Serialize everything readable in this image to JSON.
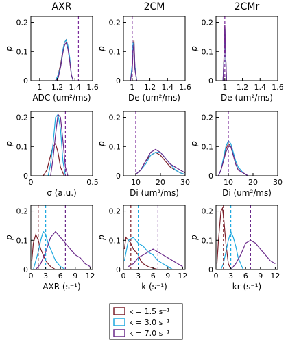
{
  "colors": {
    "k1": "#7b1f2a",
    "k2": "#1fa9e0",
    "k3": "#6a2a8a",
    "ref": "#7a2a9a"
  },
  "legend": [
    {
      "id": "k1",
      "label": "k = 1.5 s⁻¹"
    },
    {
      "id": "k2",
      "label": "k = 3.0 s⁻¹"
    },
    {
      "id": "k3",
      "label": "k = 7.0 s⁻¹"
    }
  ],
  "chart_data": [
    {
      "type": "line",
      "title": "AXR",
      "ylabel": "p",
      "xlabel": "ADC (um²/ms)",
      "xlim": [
        0.9,
        1.6
      ],
      "ylim": [
        0,
        0.22
      ],
      "xticks": [
        1.0,
        1.2,
        1.4,
        1.6
      ],
      "yticks": [
        0,
        0.1,
        0.2
      ],
      "vlines": [
        {
          "x": 1.44,
          "color_id": "ref"
        }
      ],
      "series": [
        {
          "id": "k1",
          "x": [
            1.18,
            1.21,
            1.24,
            1.26,
            1.28,
            1.3,
            1.32,
            1.34,
            1.36,
            1.38
          ],
          "y": [
            0.0,
            0.02,
            0.06,
            0.1,
            0.13,
            0.14,
            0.12,
            0.07,
            0.02,
            0.0
          ]
        },
        {
          "id": "k2",
          "x": [
            1.18,
            1.21,
            1.24,
            1.26,
            1.28,
            1.3,
            1.32,
            1.34,
            1.36,
            1.38
          ],
          "y": [
            0.0,
            0.02,
            0.05,
            0.1,
            0.13,
            0.14,
            0.12,
            0.08,
            0.02,
            0.0
          ]
        },
        {
          "id": "k3",
          "x": [
            1.18,
            1.21,
            1.24,
            1.26,
            1.28,
            1.3,
            1.32,
            1.34,
            1.36,
            1.38
          ],
          "y": [
            0.0,
            0.01,
            0.05,
            0.09,
            0.12,
            0.13,
            0.11,
            0.07,
            0.02,
            0.0
          ]
        }
      ]
    },
    {
      "type": "line",
      "title": "2CM",
      "ylabel": "p",
      "xlabel": "De (um²/ms)",
      "xlim": [
        0.9,
        1.6
      ],
      "ylim": [
        0,
        0.22
      ],
      "xticks": [
        1.0,
        1.2,
        1.4,
        1.6
      ],
      "yticks": [
        0,
        0.1,
        0.2
      ],
      "vlines": [
        {
          "x": 1.0,
          "color_id": "ref"
        }
      ],
      "series": [
        {
          "id": "k1",
          "x": [
            0.98,
            1.0,
            1.01,
            1.02,
            1.03,
            1.05
          ],
          "y": [
            0.0,
            0.05,
            0.12,
            0.14,
            0.05,
            0.0
          ]
        },
        {
          "id": "k2",
          "x": [
            0.98,
            1.0,
            1.01,
            1.02,
            1.03,
            1.05
          ],
          "y": [
            0.0,
            0.06,
            0.13,
            0.12,
            0.05,
            0.0
          ]
        },
        {
          "id": "k3",
          "x": [
            0.98,
            1.0,
            1.01,
            1.02,
            1.03,
            1.05
          ],
          "y": [
            0.0,
            0.04,
            0.1,
            0.13,
            0.04,
            0.0
          ]
        }
      ]
    },
    {
      "type": "line",
      "title": "2CMr",
      "ylabel": "p",
      "xlabel": "De (um²/ms)",
      "xlim": [
        0.9,
        1.6
      ],
      "ylim": [
        0,
        0.22
      ],
      "xticks": [
        1.0,
        1.2,
        1.4,
        1.6
      ],
      "yticks": [
        0,
        0.1,
        0.2
      ],
      "vlines": [
        {
          "x": 1.0,
          "color_id": "ref"
        }
      ],
      "series": [
        {
          "id": "k1",
          "x": [
            0.98,
            0.99,
            1.0,
            1.01,
            1.02
          ],
          "y": [
            0.0,
            0.08,
            0.19,
            0.09,
            0.0
          ]
        },
        {
          "id": "k2",
          "x": [
            0.98,
            0.99,
            1.0,
            1.01,
            1.02
          ],
          "y": [
            0.0,
            0.07,
            0.18,
            0.08,
            0.0
          ]
        },
        {
          "id": "k3",
          "x": [
            0.98,
            0.99,
            1.0,
            1.01,
            1.02
          ],
          "y": [
            0.0,
            0.07,
            0.19,
            0.09,
            0.0
          ]
        }
      ]
    },
    {
      "type": "line",
      "title": "",
      "ylabel": "p",
      "xlabel": "σ (a.u.)",
      "xlim": [
        0,
        0.5
      ],
      "ylim": [
        0,
        0.22
      ],
      "xticks": [
        0,
        0.5
      ],
      "yticks": [
        0,
        0.1,
        0.2
      ],
      "vlines": [
        {
          "x": 0.28,
          "color_id": "ref"
        }
      ],
      "series": [
        {
          "id": "k1",
          "x": [
            0.1,
            0.13,
            0.16,
            0.18,
            0.2,
            0.22,
            0.24,
            0.27
          ],
          "y": [
            0.0,
            0.02,
            0.07,
            0.1,
            0.11,
            0.08,
            0.03,
            0.0
          ]
        },
        {
          "id": "k2",
          "x": [
            0.14,
            0.16,
            0.18,
            0.2,
            0.22,
            0.24,
            0.26,
            0.28
          ],
          "y": [
            0.0,
            0.04,
            0.11,
            0.2,
            0.21,
            0.16,
            0.05,
            0.0
          ]
        },
        {
          "id": "k3",
          "x": [
            0.16,
            0.18,
            0.2,
            0.22,
            0.24,
            0.26,
            0.28,
            0.3
          ],
          "y": [
            0.0,
            0.06,
            0.14,
            0.21,
            0.2,
            0.12,
            0.03,
            0.0
          ]
        }
      ]
    },
    {
      "type": "line",
      "title": "",
      "ylabel": "p",
      "xlabel": "Di (um²/ms)",
      "xlim": [
        5,
        30
      ],
      "ylim": [
        0,
        0.22
      ],
      "xticks": [
        10,
        20,
        30
      ],
      "yticks": [
        0,
        0.1,
        0.2
      ],
      "vlines": [
        {
          "x": 10,
          "color_id": "ref"
        }
      ],
      "series": [
        {
          "id": "k1",
          "x": [
            10,
            12,
            14,
            16,
            18,
            20,
            22,
            24,
            26,
            28,
            30
          ],
          "y": [
            0.005,
            0.02,
            0.05,
            0.07,
            0.08,
            0.07,
            0.05,
            0.03,
            0.02,
            0.01,
            0.005
          ]
        },
        {
          "id": "k2",
          "x": [
            10,
            12,
            14,
            16,
            18,
            20,
            22,
            24,
            26,
            28,
            30
          ],
          "y": [
            0.005,
            0.02,
            0.04,
            0.07,
            0.08,
            0.08,
            0.06,
            0.04,
            0.02,
            0.01,
            0.005
          ]
        },
        {
          "id": "k3",
          "x": [
            10,
            12,
            14,
            16,
            18,
            20,
            22,
            24,
            26,
            28,
            30
          ],
          "y": [
            0.005,
            0.02,
            0.05,
            0.08,
            0.09,
            0.08,
            0.06,
            0.04,
            0.03,
            0.02,
            0.01
          ]
        }
      ]
    },
    {
      "type": "line",
      "title": "",
      "ylabel": "p",
      "xlabel": "Di (um²/ms)",
      "xlim": [
        5,
        30
      ],
      "ylim": [
        0,
        0.22
      ],
      "xticks": [
        10,
        20,
        30
      ],
      "yticks": [
        0,
        0.1,
        0.2
      ],
      "vlines": [
        {
          "x": 10,
          "color_id": "ref"
        }
      ],
      "series": [
        {
          "id": "k1",
          "x": [
            6,
            7,
            8,
            9,
            10,
            11,
            12,
            13,
            14,
            16,
            18
          ],
          "y": [
            0.0,
            0.02,
            0.05,
            0.09,
            0.11,
            0.1,
            0.07,
            0.04,
            0.02,
            0.01,
            0.0
          ]
        },
        {
          "id": "k2",
          "x": [
            6,
            7,
            8,
            9,
            10,
            11,
            12,
            13,
            14,
            16,
            18
          ],
          "y": [
            0.0,
            0.02,
            0.06,
            0.1,
            0.12,
            0.11,
            0.08,
            0.05,
            0.03,
            0.01,
            0.0
          ]
        },
        {
          "id": "k3",
          "x": [
            6,
            7,
            8,
            9,
            10,
            11,
            12,
            13,
            14,
            16,
            18
          ],
          "y": [
            0.0,
            0.02,
            0.05,
            0.08,
            0.1,
            0.1,
            0.07,
            0.04,
            0.02,
            0.01,
            0.0
          ]
        }
      ]
    },
    {
      "type": "line",
      "title": "",
      "ylabel": "p",
      "xlabel": "AXR (s⁻¹)",
      "xlim": [
        0,
        12.5
      ],
      "ylim": [
        0,
        0.22
      ],
      "xticks": [
        0,
        3,
        6,
        9,
        12
      ],
      "yticks": [
        0,
        0.1,
        0.2
      ],
      "vlines": [
        {
          "x": 1.5,
          "color_id": "k1"
        },
        {
          "x": 3.0,
          "color_id": "k2"
        },
        {
          "x": 7.0,
          "color_id": "k3"
        }
      ],
      "series": [
        {
          "id": "k1",
          "x": [
            0.2,
            0.5,
            1.0,
            1.5,
            2.0,
            2.5,
            3.0,
            3.5,
            4.0,
            4.5,
            5.0
          ],
          "y": [
            0.03,
            0.09,
            0.12,
            0.1,
            0.07,
            0.05,
            0.03,
            0.02,
            0.01,
            0.005,
            0.0
          ]
        },
        {
          "id": "k2",
          "x": [
            0.5,
            1.0,
            1.5,
            2.0,
            2.5,
            3.0,
            3.5,
            4.0,
            4.5,
            5.0,
            6.0,
            7.0
          ],
          "y": [
            0.0,
            0.03,
            0.06,
            0.1,
            0.13,
            0.12,
            0.09,
            0.07,
            0.05,
            0.03,
            0.01,
            0.0
          ]
        },
        {
          "id": "k3",
          "x": [
            1.0,
            2.0,
            3.0,
            4.0,
            5.0,
            6.0,
            7.0,
            8.0,
            9.0,
            10.0,
            11.0,
            12.0
          ],
          "y": [
            0.0,
            0.02,
            0.06,
            0.11,
            0.13,
            0.11,
            0.09,
            0.07,
            0.05,
            0.04,
            0.02,
            0.01
          ]
        }
      ]
    },
    {
      "type": "line",
      "title": "",
      "ylabel": "p",
      "xlabel": "k (s⁻¹)",
      "xlim": [
        0,
        12.5
      ],
      "ylim": [
        0,
        0.22
      ],
      "xticks": [
        0,
        3,
        6,
        9,
        12
      ],
      "yticks": [
        0,
        0.1,
        0.2
      ],
      "vlines": [
        {
          "x": 1.5,
          "color_id": "k1"
        },
        {
          "x": 3.0,
          "color_id": "k2"
        },
        {
          "x": 7.0,
          "color_id": "k3"
        }
      ],
      "series": [
        {
          "id": "k1",
          "x": [
            0.2,
            0.5,
            1.0,
            1.5,
            2.0,
            2.5,
            3.0,
            3.5,
            4.0,
            5.0,
            6.0,
            7.0
          ],
          "y": [
            0.07,
            0.11,
            0.1,
            0.09,
            0.07,
            0.06,
            0.05,
            0.03,
            0.02,
            0.01,
            0.005,
            0.0
          ]
        },
        {
          "id": "k2",
          "x": [
            0.2,
            1.0,
            2.0,
            3.0,
            4.0,
            5.0,
            6.0,
            7.0,
            8.0,
            9.0,
            10.0
          ],
          "y": [
            0.03,
            0.1,
            0.11,
            0.09,
            0.08,
            0.06,
            0.05,
            0.03,
            0.02,
            0.01,
            0.0
          ]
        },
        {
          "id": "k3",
          "x": [
            1.0,
            2.0,
            3.0,
            4.0,
            5.0,
            6.0,
            7.0,
            8.0,
            9.0,
            10.0,
            11.0,
            12.0
          ],
          "y": [
            0.01,
            0.02,
            0.04,
            0.05,
            0.06,
            0.07,
            0.06,
            0.05,
            0.04,
            0.03,
            0.02,
            0.01
          ]
        }
      ]
    },
    {
      "type": "line",
      "title": "",
      "ylabel": "p",
      "xlabel": "kr (s⁻¹)",
      "xlim": [
        0,
        12.5
      ],
      "ylim": [
        0,
        0.22
      ],
      "xticks": [
        0,
        3,
        6,
        9,
        12
      ],
      "yticks": [
        0,
        0.1,
        0.2
      ],
      "vlines": [
        {
          "x": 1.5,
          "color_id": "k1"
        },
        {
          "x": 3.0,
          "color_id": "k2"
        },
        {
          "x": 7.0,
          "color_id": "k3"
        }
      ],
      "series": [
        {
          "id": "k1",
          "x": [
            0.2,
            0.5,
            1.0,
            1.3,
            1.6,
            2.0,
            2.5,
            3.0
          ],
          "y": [
            0.02,
            0.1,
            0.2,
            0.21,
            0.17,
            0.09,
            0.02,
            0.0
          ]
        },
        {
          "id": "k2",
          "x": [
            1.0,
            1.5,
            2.0,
            2.5,
            3.0,
            3.5,
            4.0,
            4.5,
            5.0,
            5.5
          ],
          "y": [
            0.0,
            0.02,
            0.06,
            0.1,
            0.13,
            0.11,
            0.08,
            0.04,
            0.02,
            0.0
          ]
        },
        {
          "id": "k3",
          "x": [
            3.0,
            4.0,
            5.0,
            6.0,
            7.0,
            8.0,
            9.0,
            10.0,
            11.0,
            12.0
          ],
          "y": [
            0.0,
            0.02,
            0.05,
            0.09,
            0.1,
            0.09,
            0.07,
            0.05,
            0.03,
            0.02
          ]
        }
      ]
    }
  ]
}
